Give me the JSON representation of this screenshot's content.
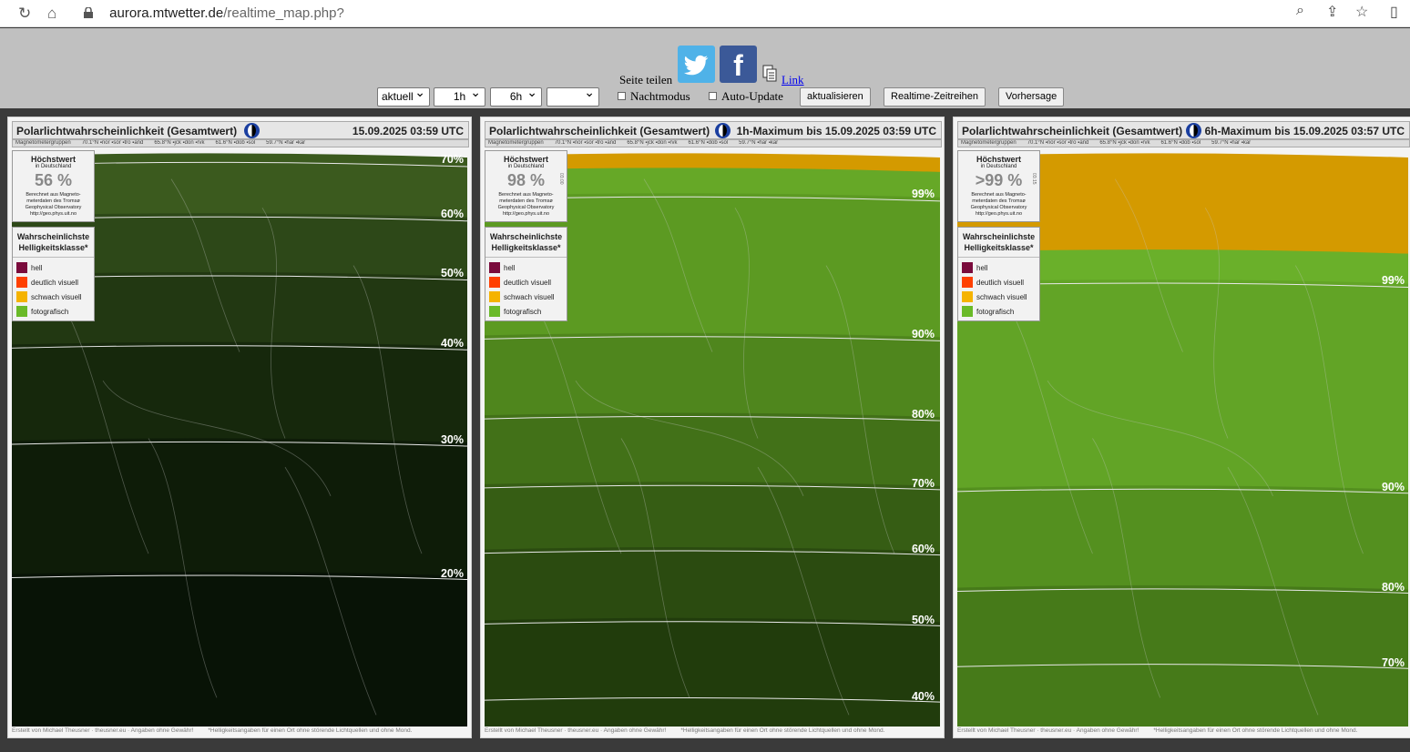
{
  "browser": {
    "host": "aurora.mtwetter.de",
    "path": "/realtime_map.php?"
  },
  "toolbar": {
    "share_label": "Seite teilen",
    "link_label": "Link",
    "select_time": "aktuell",
    "select_interval": "1h",
    "select_range": "6h",
    "select_extra": "",
    "night_mode_label": "Nachtmodus",
    "auto_update_label": "Auto-Update",
    "refresh_button": "aktualisieren",
    "timeseries_button": "Realtime-Zeitreihen",
    "forecast_button": "Vorhersage"
  },
  "common": {
    "magnetometer": "Magnetometergruppen",
    "mag_groups": [
      "70.1°N ▪nor ▪sor ▪tro ▪and",
      "65.8°N ▪jck ▪don ▪rvk",
      "61.6°N ▪dob ▪sol",
      "59.7°N ▪har ▪kar"
    ],
    "info_title": "Höchstwert",
    "info_sub": "in Deutschland",
    "info_source_1": "Berechnet aus Magneto-",
    "info_source_2": "meterdaten des Tromsø",
    "info_source_3": "Geophysical Observatory",
    "info_source_4": "http://geo.phys.uit.no",
    "legend_title_1": "Wahrscheinlichste",
    "legend_title_2": "Helligkeitsklasse*",
    "legend": [
      {
        "label": "hell",
        "color": "#7a0b3c"
      },
      {
        "label": "deutlich visuell",
        "color": "#ff4000"
      },
      {
        "label": "schwach visuell",
        "color": "#f5b300"
      },
      {
        "label": "fotografisch",
        "color": "#6aba28"
      }
    ],
    "footer_left": "Erstellt von Michael Theusner · theusner.eu · Angaben ohne Gewähr!",
    "footer_right": "*Helligkeitsangaben für einen Ort ohne störende Lichtquellen und ohne Mond."
  },
  "panels": [
    {
      "title": "Polarlichtwahrscheinlichkeit (Gesamtwert)",
      "timestamp": "15.09.2025 03:59 UTC",
      "max_value": "56 %",
      "contours": [
        "70%",
        "60%",
        "50%",
        "40%",
        "30%",
        "20%"
      ],
      "band_colors": [
        "#3b5a1e",
        "#2d4818",
        "#223812",
        "#16280c",
        "#0e1c08",
        "#081306"
      ]
    },
    {
      "title": "Polarlichtwahrscheinlichkeit (Gesamtwert)",
      "timestamp": "1h-Maximum bis 15.09.2025 03:59 UTC",
      "max_value": "98 %",
      "max_time": "03:00",
      "contours": [
        "99%",
        "90%",
        "80%",
        "70%",
        "60%",
        "50%",
        "40%"
      ],
      "band_colors": [
        "#d49a00",
        "#66a827",
        "#5c9a22",
        "#4f861d",
        "#427118",
        "#365d14",
        "#2b4b10",
        "#213c0c"
      ]
    },
    {
      "title": "Polarlichtwahrscheinlichkeit (Gesamtwert)",
      "timestamp": "6h-Maximum bis 15.09.2025 03:57 UTC",
      "max_value": ">99 %",
      "max_time": "03:15",
      "contours": [
        "99%",
        "90%",
        "80%",
        "70%"
      ],
      "band_colors": [
        "#d49a00",
        "#6ab02a",
        "#62a426",
        "#54901f",
        "#467a19"
      ]
    }
  ]
}
